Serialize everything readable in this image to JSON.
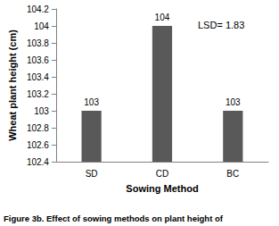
{
  "chart_data": {
    "type": "bar",
    "title": "Figure 3b. Effect of sowing methods on plant height of",
    "x_label": "Sowing Method",
    "y_label": "Wheat plant height (cm)",
    "categories": [
      "SD",
      "CD",
      "BC"
    ],
    "values": [
      103,
      104,
      103
    ],
    "color": "#595959",
    "ylim": [
      102.4,
      104.2
    ],
    "yticks": [
      102.4,
      102.6,
      102.8,
      103,
      103.2,
      103.4,
      103.6,
      103.8,
      104,
      104.2
    ],
    "grid": false,
    "data_labels": true,
    "annotations": [
      "LSD= 1.83"
    ]
  }
}
